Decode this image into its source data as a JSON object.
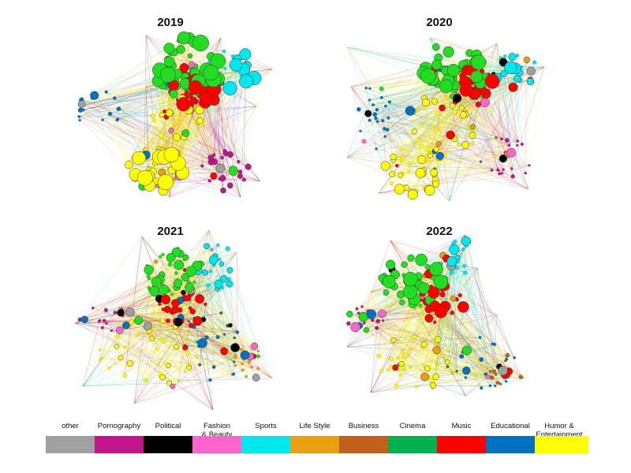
{
  "panels": [
    {
      "year": "2019"
    },
    {
      "year": "2020"
    },
    {
      "year": "2021"
    },
    {
      "year": "2022"
    }
  ],
  "legend": [
    {
      "label": "other",
      "color": "#a0a0a0"
    },
    {
      "label": "Pornography",
      "color": "#c0168c"
    },
    {
      "label": "Political",
      "color": "#000000"
    },
    {
      "label": "Fashion\n& Beauty",
      "color": "#ff66cc"
    },
    {
      "label": "Sports",
      "color": "#00e5ee"
    },
    {
      "label": "Life Style",
      "color": "#e8a010"
    },
    {
      "label": "Business",
      "color": "#c0601a"
    },
    {
      "label": "Cinema",
      "color": "#00b050"
    },
    {
      "label": "Music",
      "color": "#ff0000"
    },
    {
      "label": "Educational",
      "color": "#0070c0"
    },
    {
      "label": "Humor &\nEntertainment",
      "color": "#ffff00"
    }
  ]
}
